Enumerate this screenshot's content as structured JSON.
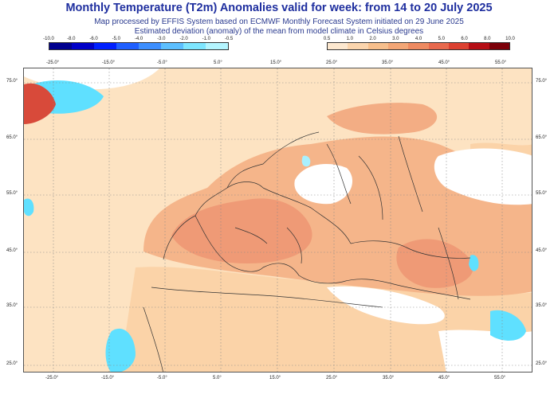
{
  "header": {
    "title": "Monthly Temperature (T2m) Anomalies valid for week: from 14 to 20 July 2025",
    "subtitle1": "Map processed by EFFIS System based on ECMWF Monthly Forecast System initiated on 29 June 2025",
    "subtitle2": "Estimated deviation (anomaly) of the mean from model climate in Celsius degrees"
  },
  "legend_cold": {
    "colors": [
      "#00008f",
      "#0000c8",
      "#0020ff",
      "#1f5fff",
      "#3d8fff",
      "#5cbfff",
      "#7ee6ff",
      "#b4f5ff"
    ],
    "values": [
      "-10.0",
      "-8.0",
      "-6.0",
      "-5.0",
      "-4.0",
      "-3.0",
      "-2.0",
      "-1.0",
      "-0.5"
    ]
  },
  "legend_warm": {
    "colors": [
      "#fde8cf",
      "#fbd5ad",
      "#f7bf8c",
      "#f3a676",
      "#ee8a61",
      "#e8694d",
      "#dc4131",
      "#b50e15",
      "#7c0008"
    ],
    "values": [
      "0.5",
      "1.0",
      "2.0",
      "3.0",
      "4.0",
      "5.0",
      "6.0",
      "8.0",
      "10.0"
    ]
  },
  "axes": {
    "lon_labels": [
      "-25.0°",
      "-15.0°",
      "-5.0°",
      "5.0°",
      "15.0°",
      "25.0°",
      "35.0°",
      "45.0°",
      "55.0°"
    ],
    "lat_labels": [
      "75.0°",
      "65.0°",
      "55.0°",
      "45.0°",
      "35.0°",
      "25.0°"
    ]
  },
  "map": {
    "fill_colors": {
      "ocean": "#fde3c2",
      "land_light": "#fbd3a8",
      "warm": "#f5b58a",
      "hot": "#ef9a76",
      "white": "#ffffff",
      "cold": "#5fe0ff",
      "cold_light": "#a8f0ff",
      "border": "#333333",
      "grid": "#888888"
    }
  }
}
